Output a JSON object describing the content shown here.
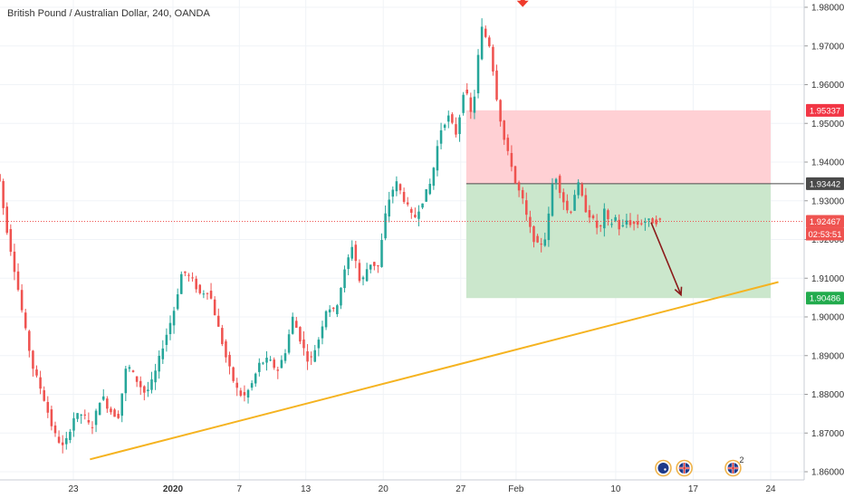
{
  "chart_data": {
    "type": "candlestick",
    "title": "British Pound / Australian Dollar, 240, OANDA",
    "xlabel": "",
    "ylabel": "",
    "ylim": [
      1.859,
      1.982
    ],
    "grid": true,
    "y_ticks": [
      "1.86000",
      "1.87000",
      "1.88000",
      "1.89000",
      "1.90000",
      "1.91000",
      "1.92000",
      "1.93000",
      "1.94000",
      "1.95000",
      "1.96000",
      "1.97000",
      "1.98000"
    ],
    "y_tick_values": [
      1.86,
      1.87,
      1.88,
      1.89,
      1.9,
      1.91,
      1.92,
      1.93,
      1.94,
      1.95,
      1.96,
      1.97,
      1.98
    ],
    "x_ticks": [
      "23",
      "2020",
      "7",
      "13",
      "20",
      "27",
      "Feb",
      "10",
      "17",
      "24"
    ],
    "x_tick_day_index": [
      0,
      9,
      15,
      21,
      28,
      35,
      40,
      49,
      56,
      63
    ],
    "x_day_range": [
      -7,
      69
    ],
    "price_path": {
      "day": [
        -7.0,
        -6.5,
        -6.0,
        -5.0,
        -4.2,
        -3.5,
        -2.6,
        -1.6,
        -0.7,
        0.2,
        1.0,
        1.8,
        2.7,
        3.4,
        4.2,
        5.0,
        5.8,
        6.7,
        7.4,
        8.3,
        9.2,
        10.0,
        10.8,
        11.6,
        12.4,
        13.2,
        14.0,
        14.8,
        15.5,
        16.2,
        17.0,
        17.8,
        18.6,
        19.3,
        20.0,
        20.8,
        21.5,
        22.3,
        23.1,
        23.8,
        24.6,
        25.4,
        26.1,
        26.9,
        27.7,
        28.5,
        29.3,
        30.1,
        30.9,
        31.7,
        32.5,
        33.3,
        34.0,
        34.8,
        35.5,
        36.2,
        37.0,
        37.8,
        38.5,
        39.2,
        39.8,
        40.2,
        40.6,
        41.1,
        41.6,
        42.2,
        42.9,
        43.6,
        44.3,
        45.0,
        45.7,
        46.4,
        47.1,
        47.7,
        48.2,
        48.6,
        49.1,
        49.6,
        50.1,
        50.6,
        51.2,
        51.8,
        52.4,
        53.0
      ],
      "price": [
        1.938,
        1.935,
        1.925,
        1.91,
        1.897,
        1.887,
        1.88,
        1.87,
        1.866,
        1.874,
        1.875,
        1.871,
        1.88,
        1.876,
        1.874,
        1.888,
        1.884,
        1.88,
        1.884,
        1.893,
        1.901,
        1.912,
        1.91,
        1.906,
        1.907,
        1.898,
        1.889,
        1.882,
        1.879,
        1.882,
        1.888,
        1.889,
        1.886,
        1.891,
        1.9,
        1.893,
        1.888,
        1.894,
        1.903,
        1.901,
        1.911,
        1.919,
        1.908,
        1.914,
        1.913,
        1.929,
        1.935,
        1.93,
        1.925,
        1.93,
        1.935,
        1.948,
        1.952,
        1.947,
        1.96,
        1.951,
        1.975,
        1.97,
        1.955,
        1.944,
        1.939,
        1.933,
        1.932,
        1.926,
        1.921,
        1.918,
        1.921,
        1.938,
        1.931,
        1.926,
        1.935,
        1.928,
        1.925,
        1.922,
        1.928,
        1.923,
        1.926,
        1.922,
        1.925,
        1.924,
        1.924,
        1.9247,
        1.9247,
        1.9247
      ]
    },
    "candle_count_estimate": 180,
    "trendline": {
      "color": "#f5b320",
      "start": {
        "day": 1.5,
        "price": 1.8632
      },
      "end": {
        "day": 63.7,
        "price": 1.909
      }
    },
    "position": {
      "type": "short",
      "entry": 1.93442,
      "stop": 1.95337,
      "target": 1.90486,
      "start_day": 35.5,
      "end_day": 63.0,
      "stop_color": "#ffcdd2",
      "target_color": "#c8e6c9",
      "entry_label": "1.93442",
      "stop_label": "1.95337",
      "target_label": "1.90486"
    },
    "current_price": {
      "value": 1.92467,
      "label": "1.92467",
      "countdown": "02:53:51",
      "color": "#ef5350"
    },
    "projection_arrow": {
      "color": "#8b1a1a",
      "from": {
        "day": 52.2,
        "price": 1.9244
      },
      "to": {
        "day": 54.9,
        "price": 1.9057
      }
    },
    "peak_marker": {
      "day": 40.6,
      "price": 1.9775,
      "color": "#ef3b2c"
    },
    "colors": {
      "up": "#26a69a",
      "down": "#ef5350",
      "grid": "#f0f3f7",
      "axis_text": "#333333"
    },
    "event_markers": [
      {
        "icon": "au-flag-icon",
        "day": 53.3
      },
      {
        "icon": "gb-flag-icon",
        "day": 55.2
      },
      {
        "icon": "gb-flag-icon",
        "day": 59.6,
        "count": "2"
      }
    ]
  }
}
